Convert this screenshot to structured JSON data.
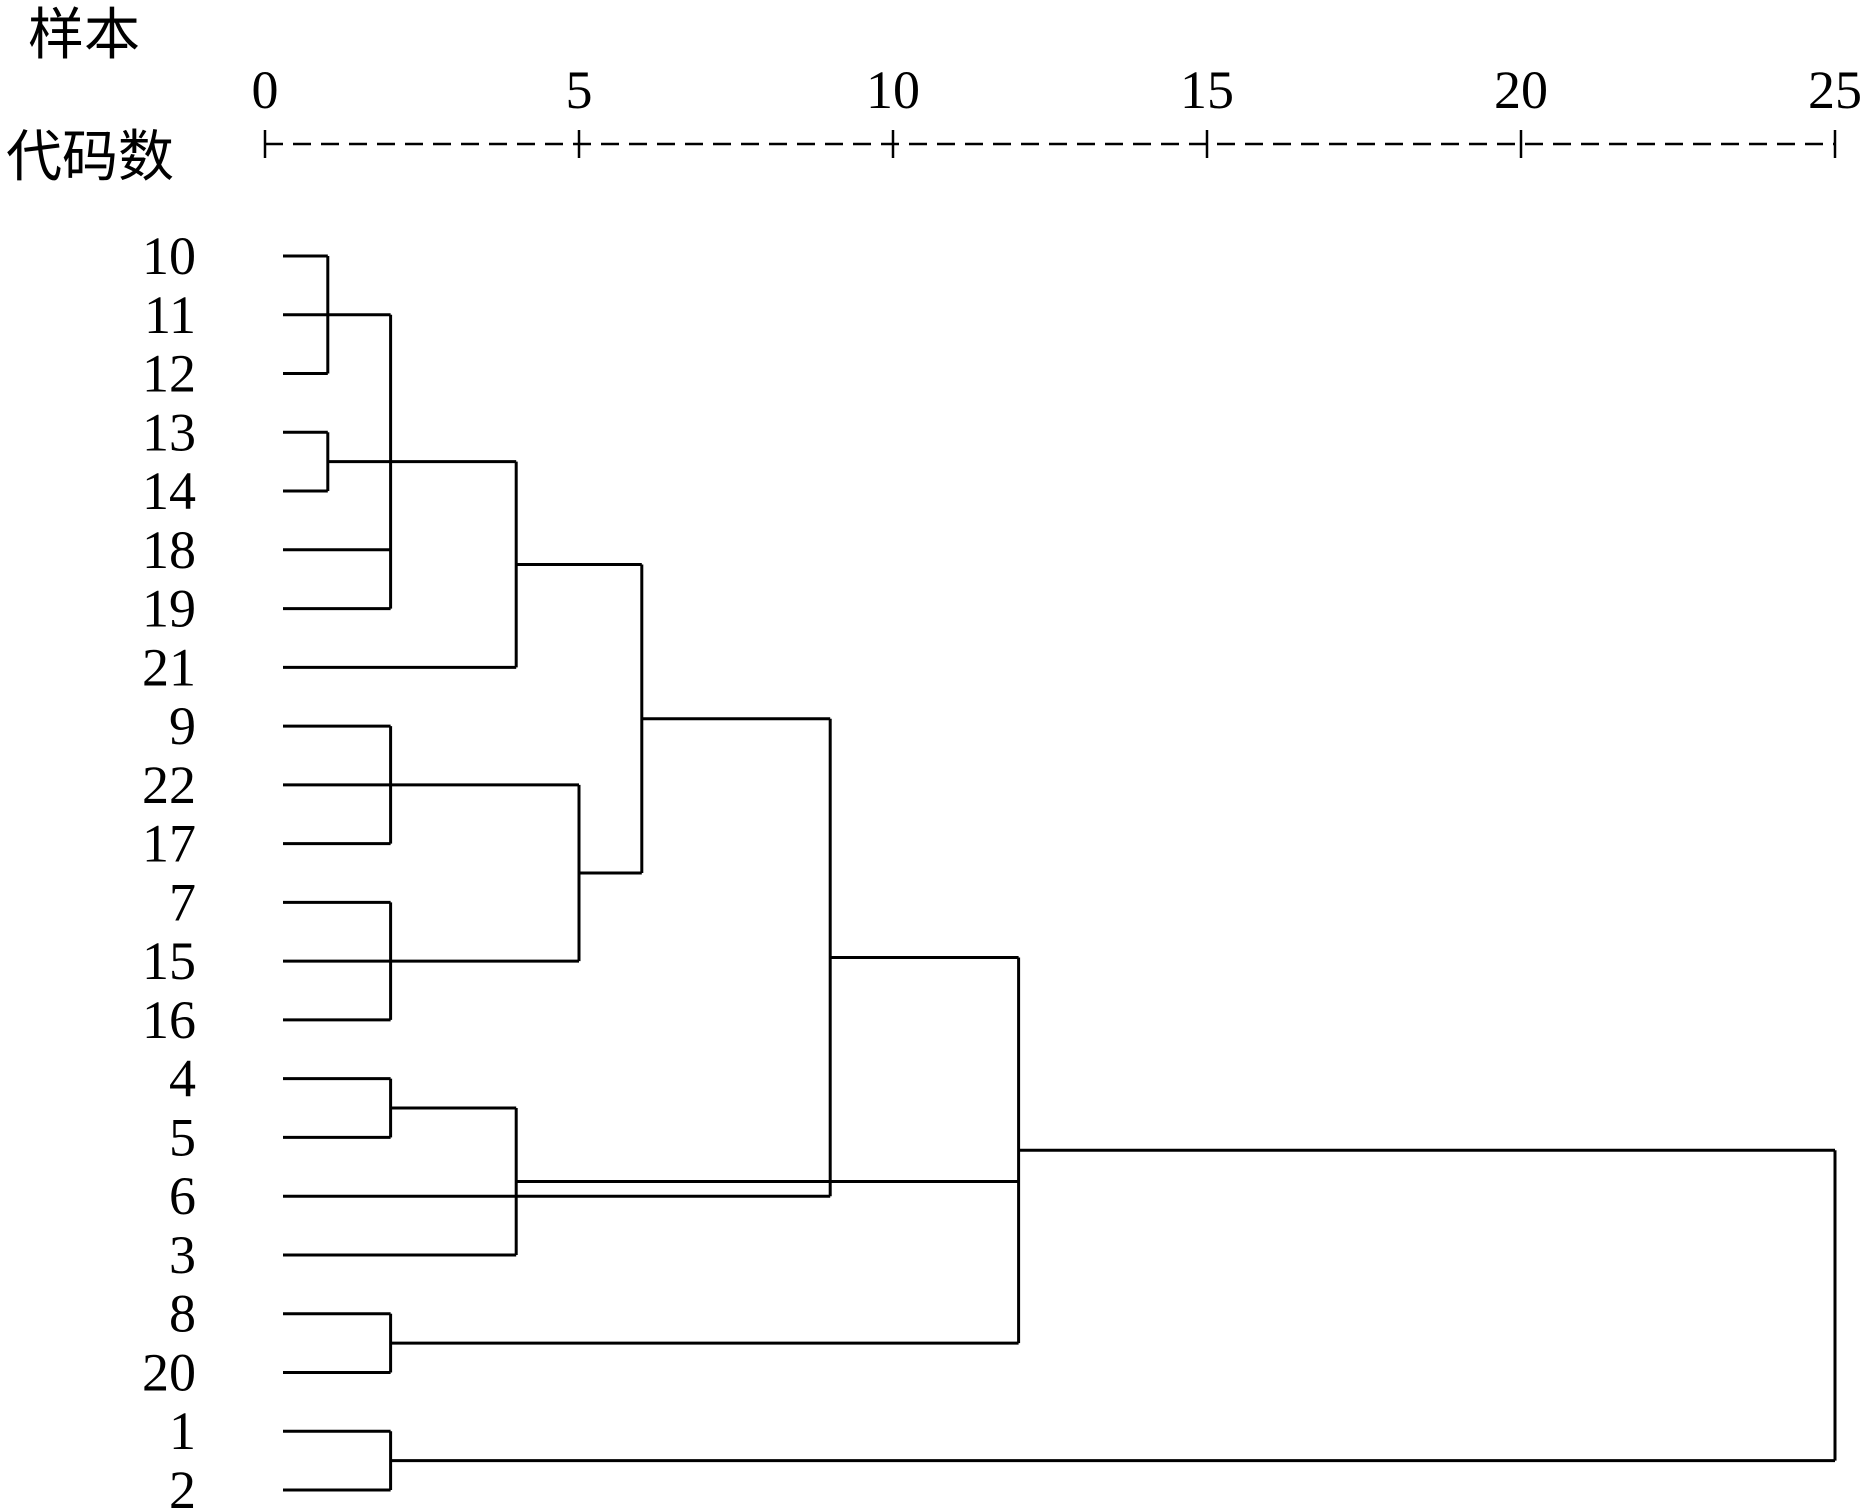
{
  "header": {
    "line1": "样本",
    "line2": "代码数"
  },
  "axis": {
    "ticks": [
      "0",
      "5",
      "10",
      "15",
      "20",
      "25"
    ],
    "range": [
      0,
      25
    ]
  },
  "leaves": [
    "10",
    "11",
    "12",
    "13",
    "14",
    "18",
    "19",
    "21",
    "9",
    "22",
    "17",
    "7",
    "15",
    "16",
    "4",
    "5",
    "6",
    "3",
    "8",
    "20",
    "1",
    "2"
  ],
  "chart_data": {
    "type": "dendrogram",
    "xlim": [
      0,
      25
    ],
    "leaf_order": [
      "10",
      "11",
      "12",
      "13",
      "14",
      "18",
      "19",
      "21",
      "9",
      "22",
      "17",
      "7",
      "15",
      "16",
      "4",
      "5",
      "6",
      "3",
      "8",
      "20",
      "1",
      "2"
    ],
    "merges": [
      {
        "id": "c1",
        "children": [
          "10",
          "11",
          "12"
        ],
        "height": 1
      },
      {
        "id": "c2",
        "children": [
          "13",
          "14"
        ],
        "height": 1
      },
      {
        "id": "c3",
        "children": [
          "c1",
          "c2",
          "18",
          "19"
        ],
        "height": 2
      },
      {
        "id": "c4",
        "children": [
          "c3",
          "21"
        ],
        "height": 4
      },
      {
        "id": "c5",
        "children": [
          "9",
          "22",
          "17"
        ],
        "height": 2
      },
      {
        "id": "c6",
        "children": [
          "7",
          "15",
          "16"
        ],
        "height": 2
      },
      {
        "id": "c7",
        "children": [
          "c5",
          "c6"
        ],
        "height": 5
      },
      {
        "id": "c8",
        "children": [
          "c4",
          "c7"
        ],
        "height": 6
      },
      {
        "id": "c9",
        "children": [
          "4",
          "5"
        ],
        "height": 2
      },
      {
        "id": "c10",
        "children": [
          "c9",
          "3"
        ],
        "height": 4
      },
      {
        "id": "c11",
        "children": [
          "c8",
          "6"
        ],
        "height": 9
      },
      {
        "id": "c12",
        "children": [
          "8",
          "20"
        ],
        "height": 2
      },
      {
        "id": "c13",
        "children": [
          "c11",
          "c12",
          "c10"
        ],
        "height": 12
      },
      {
        "id": "c14",
        "children": [
          "1",
          "2"
        ],
        "height": 2
      },
      {
        "id": "c15",
        "children": [
          "c13",
          "c14"
        ],
        "height": 25
      }
    ]
  }
}
